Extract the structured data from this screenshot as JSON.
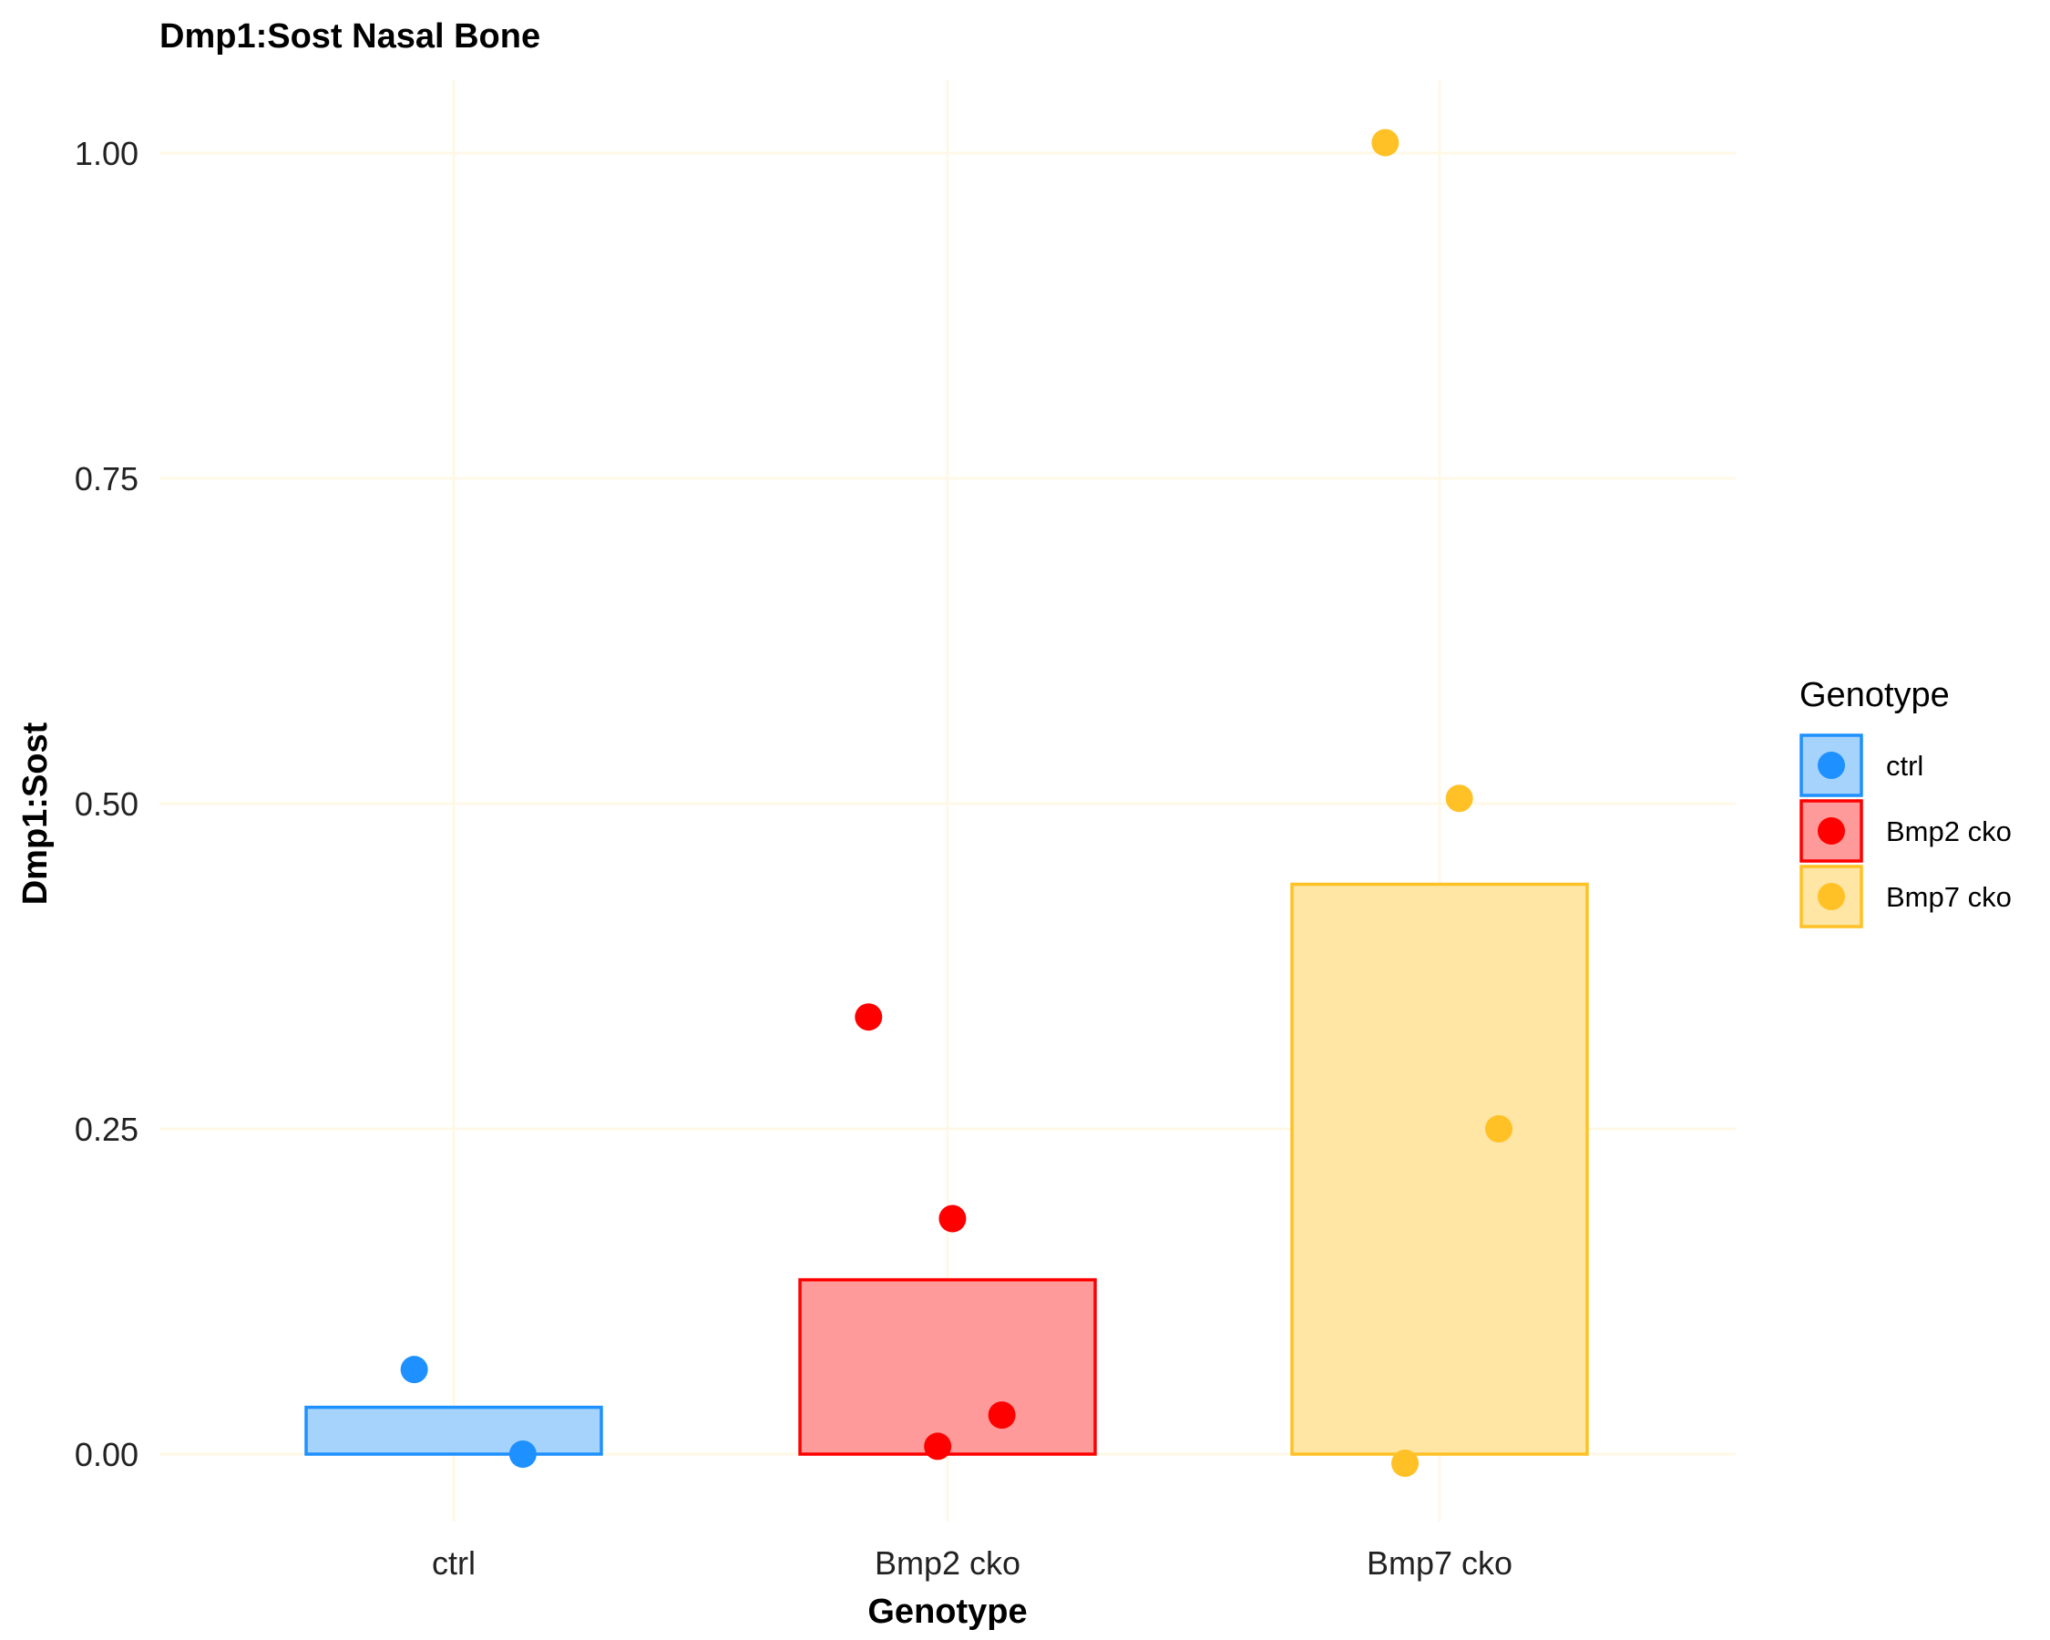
{
  "chart_data": {
    "type": "bar",
    "title": "Dmp1:Sost Nasal Bone",
    "xlabel": "Genotype",
    "ylabel": "Dmp1:Sost",
    "categories": [
      "ctrl",
      "Bmp2 cko",
      "Bmp7 cko"
    ],
    "ylim": [
      -0.06,
      1.06
    ],
    "yticks": [
      0.0,
      0.25,
      0.5,
      0.75,
      1.0
    ],
    "ytick_labels": [
      "0.00",
      "0.25",
      "0.50",
      "0.75",
      "1.00"
    ],
    "bars": [
      {
        "category": "ctrl",
        "value": 0.036
      },
      {
        "category": "Bmp2 cko",
        "value": 0.134
      },
      {
        "category": "Bmp7 cko",
        "value": 0.438
      }
    ],
    "points": [
      {
        "category": "ctrl",
        "jitter": -0.08,
        "value": 0.065
      },
      {
        "category": "ctrl",
        "jitter": 0.14,
        "value": 0.0
      },
      {
        "category": "Bmp2 cko",
        "jitter": -0.16,
        "value": 0.336
      },
      {
        "category": "Bmp2 cko",
        "jitter": 0.01,
        "value": 0.181
      },
      {
        "category": "Bmp2 cko",
        "jitter": 0.11,
        "value": 0.03
      },
      {
        "category": "Bmp2 cko",
        "jitter": -0.02,
        "value": 0.006
      },
      {
        "category": "Bmp7 cko",
        "jitter": -0.11,
        "value": 1.008
      },
      {
        "category": "Bmp7 cko",
        "jitter": 0.04,
        "value": 0.504
      },
      {
        "category": "Bmp7 cko",
        "jitter": 0.12,
        "value": 0.25
      },
      {
        "category": "Bmp7 cko",
        "jitter": -0.07,
        "value": -0.007
      }
    ],
    "colors": {
      "ctrl": {
        "point": "#1E90FF",
        "fill": "#A6D3FC",
        "stroke": "#1E90FF"
      },
      "Bmp2 cko": {
        "point": "#FF0000",
        "fill": "#FF9A9A",
        "stroke": "#FF0000"
      },
      "Bmp7 cko": {
        "point": "#FFC125",
        "fill": "#FFE6A5",
        "stroke": "#FFC125"
      }
    },
    "legend": {
      "title": "Genotype",
      "entries": [
        "ctrl",
        "Bmp2 cko",
        "Bmp7 cko"
      ],
      "placement": "right"
    },
    "grid": true,
    "grid_color": "#FFF8E7"
  }
}
